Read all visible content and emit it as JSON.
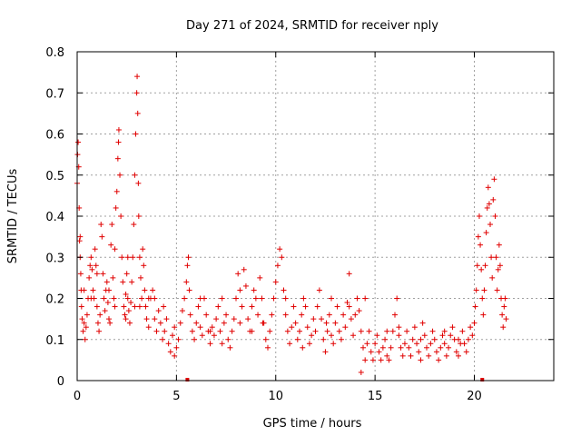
{
  "chart_data": {
    "type": "scatter",
    "title": "Day 271 of 2024, SRMTID for receiver nply",
    "xlabel": "GPS time / hours",
    "ylabel": "SRMTID / TECUs",
    "xlim": [
      0,
      24
    ],
    "ylim": [
      0,
      0.8
    ],
    "x_ticks": [
      0,
      5,
      10,
      15,
      20
    ],
    "y_ticks": [
      0,
      0.1,
      0.2,
      0.3,
      0.4,
      0.5,
      0.6,
      0.7,
      0.8
    ],
    "x_tick_labels": [
      "0",
      "5",
      "10",
      "15",
      "20"
    ],
    "y_tick_labels": [
      "0",
      "0.1",
      "0.2",
      "0.3",
      "0.4",
      "0.5",
      "0.6",
      "0.7",
      "0.8"
    ],
    "grid": true,
    "marker": "+",
    "color": "#e00000",
    "axis_markers_x": [
      5.55,
      20.4
    ],
    "series": [
      {
        "name": "SRMTID",
        "points": [
          [
            0.0,
            0.48
          ],
          [
            0.02,
            0.55
          ],
          [
            0.05,
            0.58
          ],
          [
            0.08,
            0.52
          ],
          [
            0.1,
            0.42
          ],
          [
            0.12,
            0.34
          ],
          [
            0.15,
            0.3
          ],
          [
            0.18,
            0.26
          ],
          [
            0.2,
            0.22
          ],
          [
            0.22,
            0.18
          ],
          [
            0.25,
            0.15
          ],
          [
            0.3,
            0.12
          ],
          [
            0.35,
            0.14
          ],
          [
            0.4,
            0.1
          ],
          [
            0.45,
            0.13
          ],
          [
            0.5,
            0.16
          ],
          [
            0.55,
            0.2
          ],
          [
            0.6,
            0.25
          ],
          [
            0.65,
            0.28
          ],
          [
            0.7,
            0.3
          ],
          [
            0.75,
            0.27
          ],
          [
            0.8,
            0.22
          ],
          [
            0.85,
            0.2
          ],
          [
            0.9,
            0.32
          ],
          [
            0.95,
            0.28
          ],
          [
            1.0,
            0.18
          ],
          [
            1.05,
            0.14
          ],
          [
            1.1,
            0.12
          ],
          [
            1.15,
            0.16
          ],
          [
            1.2,
            0.38
          ],
          [
            1.25,
            0.35
          ],
          [
            1.3,
            0.26
          ],
          [
            1.35,
            0.2
          ],
          [
            1.4,
            0.17
          ],
          [
            1.45,
            0.22
          ],
          [
            1.5,
            0.24
          ],
          [
            1.55,
            0.19
          ],
          [
            1.6,
            0.15
          ],
          [
            1.65,
            0.14
          ],
          [
            1.7,
            0.33
          ],
          [
            1.75,
            0.38
          ],
          [
            1.8,
            0.25
          ],
          [
            1.85,
            0.2
          ],
          [
            1.9,
            0.32
          ],
          [
            1.95,
            0.42
          ],
          [
            2.0,
            0.46
          ],
          [
            2.05,
            0.54
          ],
          [
            2.08,
            0.58
          ],
          [
            2.1,
            0.61
          ],
          [
            2.15,
            0.5
          ],
          [
            2.2,
            0.4
          ],
          [
            2.25,
            0.3
          ],
          [
            2.3,
            0.24
          ],
          [
            2.35,
            0.18
          ],
          [
            2.4,
            0.16
          ],
          [
            2.45,
            0.21
          ],
          [
            2.5,
            0.26
          ],
          [
            2.55,
            0.2
          ],
          [
            2.6,
            0.17
          ],
          [
            2.65,
            0.14
          ],
          [
            2.7,
            0.19
          ],
          [
            2.75,
            0.24
          ],
          [
            2.8,
            0.3
          ],
          [
            2.85,
            0.38
          ],
          [
            2.9,
            0.5
          ],
          [
            2.95,
            0.6
          ],
          [
            3.0,
            0.7
          ],
          [
            3.02,
            0.74
          ],
          [
            3.05,
            0.65
          ],
          [
            3.08,
            0.48
          ],
          [
            3.1,
            0.4
          ],
          [
            3.15,
            0.3
          ],
          [
            3.2,
            0.25
          ],
          [
            3.25,
            0.2
          ],
          [
            3.3,
            0.32
          ],
          [
            3.35,
            0.28
          ],
          [
            3.4,
            0.22
          ],
          [
            3.45,
            0.18
          ],
          [
            3.5,
            0.15
          ],
          [
            3.6,
            0.13
          ],
          [
            3.7,
            0.2
          ],
          [
            3.8,
            0.22
          ],
          [
            3.9,
            0.15
          ],
          [
            4.0,
            0.12
          ],
          [
            4.1,
            0.17
          ],
          [
            4.2,
            0.14
          ],
          [
            4.3,
            0.1
          ],
          [
            4.4,
            0.12
          ],
          [
            4.5,
            0.15
          ],
          [
            4.6,
            0.09
          ],
          [
            4.7,
            0.07
          ],
          [
            4.8,
            0.11
          ],
          [
            4.9,
            0.13
          ],
          [
            5.0,
            0.08
          ],
          [
            5.1,
            0.1
          ],
          [
            5.2,
            0.14
          ],
          [
            5.3,
            0.17
          ],
          [
            5.4,
            0.2
          ],
          [
            5.5,
            0.24
          ],
          [
            5.55,
            0.28
          ],
          [
            5.6,
            0.3
          ],
          [
            5.65,
            0.22
          ],
          [
            5.7,
            0.16
          ],
          [
            5.8,
            0.12
          ],
          [
            5.9,
            0.1
          ],
          [
            6.0,
            0.14
          ],
          [
            6.1,
            0.18
          ],
          [
            6.2,
            0.13
          ],
          [
            6.3,
            0.11
          ],
          [
            6.4,
            0.2
          ],
          [
            6.5,
            0.16
          ],
          [
            6.6,
            0.12
          ],
          [
            6.7,
            0.09
          ],
          [
            6.8,
            0.13
          ],
          [
            6.9,
            0.11
          ],
          [
            7.0,
            0.15
          ],
          [
            7.1,
            0.18
          ],
          [
            7.2,
            0.12
          ],
          [
            7.3,
            0.09
          ],
          [
            7.4,
            0.14
          ],
          [
            7.5,
            0.16
          ],
          [
            7.6,
            0.1
          ],
          [
            7.7,
            0.08
          ],
          [
            7.8,
            0.12
          ],
          [
            7.9,
            0.15
          ],
          [
            8.0,
            0.2
          ],
          [
            8.1,
            0.26
          ],
          [
            8.2,
            0.22
          ],
          [
            8.3,
            0.18
          ],
          [
            8.4,
            0.27
          ],
          [
            8.5,
            0.23
          ],
          [
            8.6,
            0.15
          ],
          [
            8.7,
            0.12
          ],
          [
            8.8,
            0.18
          ],
          [
            8.9,
            0.22
          ],
          [
            9.0,
            0.2
          ],
          [
            9.1,
            0.16
          ],
          [
            9.2,
            0.25
          ],
          [
            9.3,
            0.2
          ],
          [
            9.4,
            0.14
          ],
          [
            9.5,
            0.1
          ],
          [
            9.6,
            0.08
          ],
          [
            9.7,
            0.12
          ],
          [
            9.8,
            0.16
          ],
          [
            9.9,
            0.2
          ],
          [
            10.0,
            0.24
          ],
          [
            10.1,
            0.28
          ],
          [
            10.2,
            0.32
          ],
          [
            10.3,
            0.3
          ],
          [
            10.4,
            0.22
          ],
          [
            10.5,
            0.16
          ],
          [
            10.6,
            0.12
          ],
          [
            10.7,
            0.09
          ],
          [
            10.8,
            0.13
          ],
          [
            10.9,
            0.18
          ],
          [
            11.0,
            0.14
          ],
          [
            11.1,
            0.1
          ],
          [
            11.2,
            0.12
          ],
          [
            11.3,
            0.16
          ],
          [
            11.4,
            0.2
          ],
          [
            11.5,
            0.18
          ],
          [
            11.6,
            0.13
          ],
          [
            11.7,
            0.09
          ],
          [
            11.8,
            0.11
          ],
          [
            11.9,
            0.15
          ],
          [
            12.0,
            0.12
          ],
          [
            12.1,
            0.18
          ],
          [
            12.2,
            0.22
          ],
          [
            12.3,
            0.15
          ],
          [
            12.4,
            0.1
          ],
          [
            12.5,
            0.07
          ],
          [
            12.6,
            0.12
          ],
          [
            12.7,
            0.16
          ],
          [
            12.8,
            0.11
          ],
          [
            12.9,
            0.09
          ],
          [
            13.0,
            0.14
          ],
          [
            13.1,
            0.18
          ],
          [
            13.2,
            0.12
          ],
          [
            13.3,
            0.1
          ],
          [
            13.4,
            0.16
          ],
          [
            13.5,
            0.13
          ],
          [
            13.6,
            0.19
          ],
          [
            13.7,
            0.26
          ],
          [
            13.8,
            0.15
          ],
          [
            13.9,
            0.11
          ],
          [
            14.0,
            0.16
          ],
          [
            14.1,
            0.2
          ],
          [
            14.2,
            0.17
          ],
          [
            14.3,
            0.12
          ],
          [
            14.4,
            0.08
          ],
          [
            14.5,
            0.05
          ],
          [
            14.6,
            0.09
          ],
          [
            14.7,
            0.12
          ],
          [
            14.8,
            0.07
          ],
          [
            14.9,
            0.05
          ],
          [
            15.0,
            0.09
          ],
          [
            15.1,
            0.11
          ],
          [
            15.2,
            0.07
          ],
          [
            15.3,
            0.05
          ],
          [
            15.4,
            0.08
          ],
          [
            15.5,
            0.1
          ],
          [
            15.6,
            0.06
          ],
          [
            15.7,
            0.05
          ],
          [
            15.8,
            0.08
          ],
          [
            15.9,
            0.12
          ],
          [
            16.0,
            0.16
          ],
          [
            16.1,
            0.2
          ],
          [
            16.2,
            0.13
          ],
          [
            16.3,
            0.08
          ],
          [
            16.4,
            0.06
          ],
          [
            16.5,
            0.09
          ],
          [
            16.6,
            0.12
          ],
          [
            16.7,
            0.08
          ],
          [
            16.8,
            0.06
          ],
          [
            16.9,
            0.1
          ],
          [
            17.0,
            0.13
          ],
          [
            17.1,
            0.09
          ],
          [
            17.2,
            0.07
          ],
          [
            17.3,
            0.1
          ],
          [
            17.4,
            0.14
          ],
          [
            17.5,
            0.11
          ],
          [
            17.6,
            0.08
          ],
          [
            17.7,
            0.06
          ],
          [
            17.8,
            0.09
          ],
          [
            17.9,
            0.12
          ],
          [
            18.0,
            0.1
          ],
          [
            18.1,
            0.07
          ],
          [
            18.2,
            0.05
          ],
          [
            18.3,
            0.08
          ],
          [
            18.4,
            0.11
          ],
          [
            18.5,
            0.09
          ],
          [
            18.6,
            0.06
          ],
          [
            18.7,
            0.08
          ],
          [
            18.8,
            0.11
          ],
          [
            18.9,
            0.13
          ],
          [
            19.0,
            0.1
          ],
          [
            19.1,
            0.07
          ],
          [
            19.2,
            0.06
          ],
          [
            19.3,
            0.09
          ],
          [
            19.4,
            0.12
          ],
          [
            19.5,
            0.09
          ],
          [
            19.6,
            0.07
          ],
          [
            19.7,
            0.1
          ],
          [
            19.8,
            0.13
          ],
          [
            19.9,
            0.11
          ],
          [
            20.0,
            0.14
          ],
          [
            20.05,
            0.18
          ],
          [
            20.1,
            0.22
          ],
          [
            20.15,
            0.28
          ],
          [
            20.2,
            0.35
          ],
          [
            20.25,
            0.4
          ],
          [
            20.3,
            0.33
          ],
          [
            20.35,
            0.27
          ],
          [
            20.4,
            0.2
          ],
          [
            20.45,
            0.16
          ],
          [
            20.5,
            0.22
          ],
          [
            20.55,
            0.28
          ],
          [
            20.6,
            0.36
          ],
          [
            20.65,
            0.42
          ],
          [
            20.7,
            0.47
          ],
          [
            20.75,
            0.43
          ],
          [
            20.8,
            0.38
          ],
          [
            20.85,
            0.3
          ],
          [
            20.9,
            0.25
          ],
          [
            20.95,
            0.44
          ],
          [
            21.0,
            0.49
          ],
          [
            21.05,
            0.4
          ],
          [
            21.1,
            0.3
          ],
          [
            21.15,
            0.22
          ],
          [
            21.2,
            0.27
          ],
          [
            21.25,
            0.33
          ],
          [
            21.3,
            0.28
          ],
          [
            21.35,
            0.2
          ],
          [
            21.4,
            0.16
          ],
          [
            21.45,
            0.13
          ],
          [
            21.5,
            0.18
          ],
          [
            21.55,
            0.2
          ],
          [
            21.6,
            0.15
          ],
          [
            2.45,
            0.15
          ],
          [
            2.9,
            0.18
          ],
          [
            1.6,
            0.22
          ],
          [
            0.35,
            0.22
          ],
          [
            3.9,
            0.2
          ],
          [
            6.7,
            0.12
          ],
          [
            8.8,
            0.12
          ],
          [
            10.5,
            0.2
          ],
          [
            12.8,
            0.2
          ],
          [
            14.5,
            0.2
          ],
          [
            16.2,
            0.11
          ],
          [
            18.5,
            0.12
          ],
          [
            0.15,
            0.35
          ],
          [
            0.7,
            0.2
          ],
          [
            1.0,
            0.26
          ],
          [
            1.9,
            0.18
          ],
          [
            2.55,
            0.3
          ],
          [
            3.15,
            0.18
          ],
          [
            3.6,
            0.2
          ],
          [
            4.35,
            0.18
          ],
          [
            4.9,
            0.06
          ],
          [
            6.2,
            0.2
          ],
          [
            7.3,
            0.2
          ],
          [
            8.2,
            0.14
          ],
          [
            9.35,
            0.14
          ],
          [
            11.35,
            0.08
          ],
          [
            12.55,
            0.14
          ],
          [
            13.7,
            0.18
          ],
          [
            14.3,
            0.02
          ],
          [
            15.6,
            0.12
          ],
          [
            17.3,
            0.05
          ],
          [
            19.2,
            0.1
          ]
        ]
      }
    ]
  }
}
